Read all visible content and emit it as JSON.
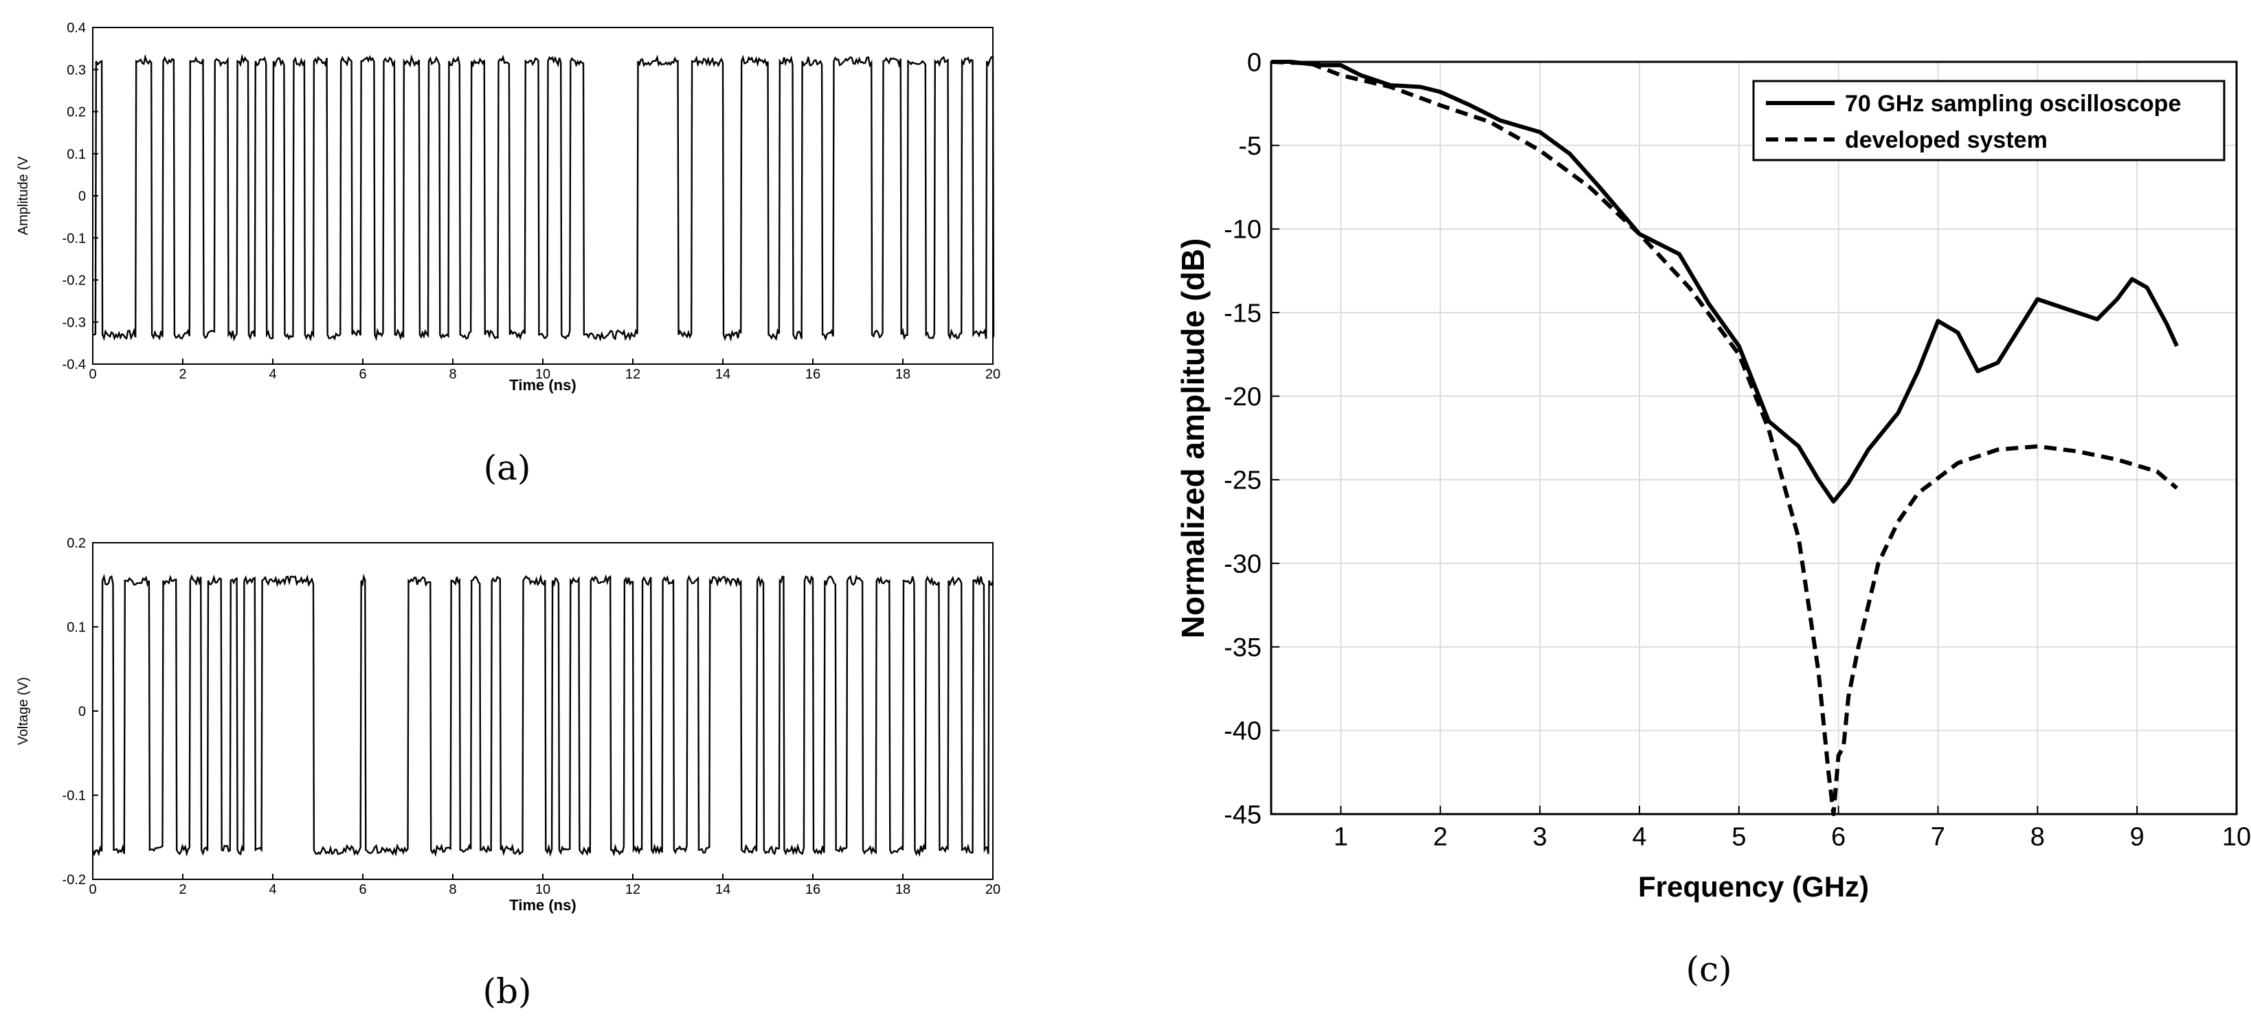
{
  "colors": {
    "line": "#000000",
    "grid": "#dcdcdc",
    "background": "#ffffff"
  },
  "chart_data": [
    {
      "type": "line",
      "panel": "a",
      "caption": "(a)",
      "xlabel": "Time (ns)",
      "ylabel": "Amplitude (V",
      "xlim": [
        0,
        20
      ],
      "ylim": [
        -0.4,
        0.4
      ],
      "xticks": [
        0,
        2,
        4,
        6,
        8,
        10,
        12,
        14,
        16,
        18,
        20
      ],
      "yticks": [
        -0.4,
        -0.3,
        -0.2,
        -0.1,
        0,
        0.1,
        0.2,
        0.3,
        0.4
      ],
      "grid": false,
      "signal": {
        "high": 0.32,
        "low": -0.33,
        "transitions": [
          0.06,
          0.2,
          0.95,
          1.3,
          1.55,
          1.8,
          2.15,
          2.45,
          2.7,
          3.0,
          3.2,
          3.45,
          3.6,
          3.85,
          4.0,
          4.25,
          4.45,
          4.7,
          4.9,
          5.2,
          5.5,
          5.75,
          5.95,
          6.25,
          6.45,
          6.7,
          6.9,
          7.25,
          7.45,
          7.7,
          7.9,
          8.15,
          8.4,
          8.7,
          9.0,
          9.25,
          9.6,
          9.9,
          10.1,
          10.4,
          10.6,
          10.9,
          12.1,
          13.0,
          13.3,
          14.0,
          14.4,
          15.0,
          15.25,
          15.55,
          15.75,
          16.2,
          16.45,
          17.3,
          17.55,
          17.95,
          18.1,
          18.5,
          18.7,
          19.0,
          19.3,
          19.55,
          19.85,
          20.0
        ]
      }
    },
    {
      "type": "line",
      "panel": "b",
      "caption": "(b)",
      "xlabel": "Time (ns)",
      "ylabel": "Voltage (V)",
      "xlim": [
        0,
        20
      ],
      "ylim": [
        -0.2,
        0.2
      ],
      "xticks": [
        0,
        2,
        4,
        6,
        8,
        10,
        12,
        14,
        16,
        18,
        20
      ],
      "yticks": [
        -0.2,
        -0.1,
        0,
        0.1,
        0.2
      ],
      "grid": false,
      "signal": {
        "high": 0.155,
        "low": -0.165,
        "transitions": [
          0.2,
          0.45,
          0.7,
          1.25,
          1.55,
          1.85,
          2.15,
          2.4,
          2.55,
          2.85,
          3.05,
          3.2,
          3.35,
          3.6,
          3.75,
          4.9,
          5.95,
          6.05,
          7.0,
          7.5,
          7.95,
          8.15,
          8.4,
          8.6,
          8.85,
          9.05,
          9.55,
          10.05,
          10.2,
          10.35,
          10.6,
          10.8,
          11.05,
          11.5,
          11.8,
          12.0,
          12.2,
          12.4,
          12.65,
          12.9,
          13.2,
          13.45,
          13.7,
          14.4,
          14.75,
          14.9,
          15.25,
          15.35,
          15.8,
          16.0,
          16.25,
          16.5,
          16.75,
          17.1,
          17.4,
          17.7,
          18.0,
          18.25,
          18.5,
          18.8,
          19.0,
          19.3,
          19.55,
          19.8,
          19.9
        ]
      }
    },
    {
      "type": "line",
      "panel": "c",
      "caption": "(c)",
      "xlabel": "Frequency (GHz)",
      "ylabel": "Normalized amplitude (dB)",
      "xlim": [
        0.3,
        10
      ],
      "ylim": [
        -45,
        0
      ],
      "xticks": [
        1,
        2,
        3,
        4,
        5,
        6,
        7,
        8,
        9,
        10
      ],
      "yticks": [
        0,
        -5,
        -10,
        -15,
        -20,
        -25,
        -30,
        -35,
        -40,
        -45
      ],
      "grid": true,
      "legend_position": "top-right",
      "series": [
        {
          "name": "70 GHz sampling oscilloscope",
          "style": "solid",
          "x": [
            0.3,
            0.5,
            0.8,
            1.0,
            1.2,
            1.5,
            1.8,
            2.0,
            2.3,
            2.6,
            3.0,
            3.3,
            3.6,
            4.0,
            4.4,
            4.7,
            5.0,
            5.3,
            5.6,
            5.8,
            5.95,
            6.1,
            6.3,
            6.6,
            6.8,
            7.0,
            7.2,
            7.4,
            7.6,
            8.0,
            8.3,
            8.6,
            8.8,
            8.95,
            9.1,
            9.3,
            9.4
          ],
          "y": [
            0,
            0,
            -0.2,
            -0.2,
            -0.8,
            -1.4,
            -1.5,
            -1.8,
            -2.6,
            -3.5,
            -4.2,
            -5.5,
            -7.5,
            -10.3,
            -11.5,
            -14.5,
            -17.0,
            -21.5,
            -23.0,
            -25.0,
            -26.3,
            -25.2,
            -23.2,
            -21.0,
            -18.5,
            -15.5,
            -16.2,
            -18.5,
            -18.0,
            -14.2,
            -14.8,
            -15.4,
            -14.2,
            -13.0,
            -13.5,
            -15.7,
            -17.0
          ]
        },
        {
          "name": "developed system",
          "style": "dashed",
          "x": [
            0.3,
            0.7,
            1.0,
            1.5,
            2.0,
            2.5,
            3.0,
            3.5,
            4.0,
            4.5,
            5.0,
            5.3,
            5.6,
            5.8,
            5.9,
            5.95,
            6.0,
            6.05,
            6.1,
            6.2,
            6.4,
            6.6,
            6.8,
            7.2,
            7.6,
            8.0,
            8.4,
            8.8,
            9.2,
            9.4
          ],
          "y": [
            0,
            -0.1,
            -0.8,
            -1.5,
            -2.6,
            -3.6,
            -5.3,
            -7.5,
            -10.3,
            -13.5,
            -17.5,
            -22.0,
            -28.5,
            -36.5,
            -42.5,
            -45.0,
            -41.5,
            -41.0,
            -38.0,
            -35.0,
            -30.0,
            -27.5,
            -25.8,
            -24.0,
            -23.2,
            -23.0,
            -23.3,
            -23.8,
            -24.5,
            -25.5
          ]
        }
      ]
    }
  ]
}
